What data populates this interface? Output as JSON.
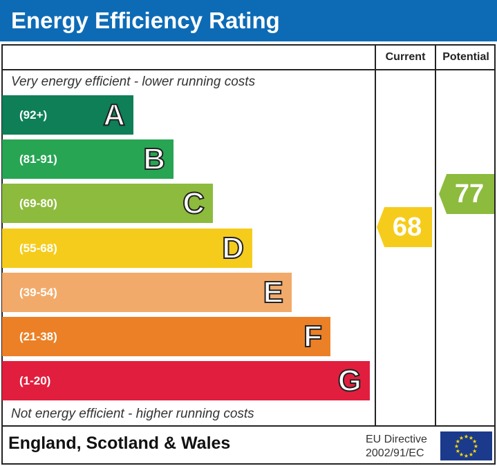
{
  "header": {
    "title": "Energy Efficiency Rating"
  },
  "columns": {
    "current": "Current",
    "potential": "Potential"
  },
  "notes": {
    "top": "Very energy efficient - lower running costs",
    "bottom": "Not energy efficient - higher running costs"
  },
  "footer": {
    "region": "England, Scotland & Wales",
    "directive_line1": "EU Directive",
    "directive_line2": "2002/91/EC",
    "flag_icon": "eu-flag-icon"
  },
  "chart_data": {
    "type": "bar",
    "categories": [
      "A",
      "B",
      "C",
      "D",
      "E",
      "F",
      "G"
    ],
    "ranges": [
      "(92+)",
      "(81-91)",
      "(69-80)",
      "(55-68)",
      "(39-54)",
      "(21-38)",
      "(1-20)"
    ],
    "colors": [
      "#0e7f57",
      "#27a553",
      "#8dbb3d",
      "#f5cc1b",
      "#f2aa6a",
      "#ec8026",
      "#e21e3e"
    ],
    "current": {
      "value": 68,
      "band": "D",
      "color": "#f5cc1b",
      "label": "68"
    },
    "potential": {
      "value": 77,
      "band": "C",
      "color": "#8dbb3d",
      "label": "77"
    }
  }
}
